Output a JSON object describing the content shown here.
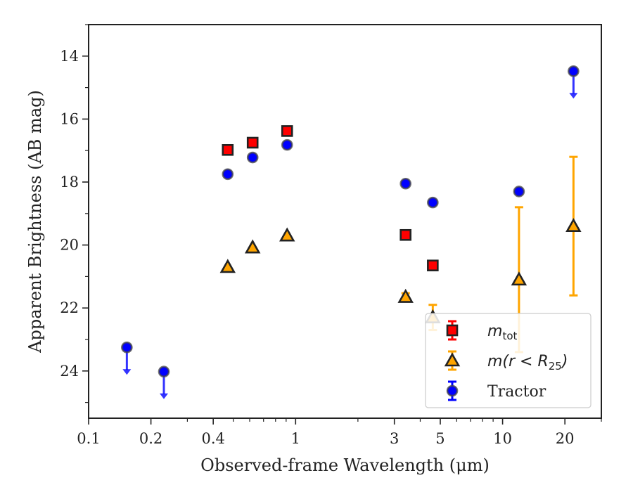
{
  "chart_data": {
    "type": "scatter",
    "title": "",
    "xlabel": "Observed-frame Wavelength (μm)",
    "ylabel": "Apparent Brightness (AB mag)",
    "x_scale": "log",
    "y_inverted": true,
    "xlim": [
      0.1,
      30
    ],
    "ylim": [
      25.5,
      13.0
    ],
    "xticks": [
      0.1,
      0.2,
      0.4,
      1,
      3,
      5,
      10,
      20
    ],
    "xtick_labels": [
      "0.1",
      "0.2",
      "0.4",
      "1",
      "3",
      "5",
      "10",
      "20"
    ],
    "yticks": [
      14,
      16,
      18,
      20,
      22,
      24
    ],
    "ytick_labels": [
      "14",
      "16",
      "18",
      "20",
      "22",
      "24"
    ],
    "grid": false,
    "legend_position": "lower-right",
    "series": [
      {
        "name": "m_tot",
        "legend_label": "m",
        "legend_sub": "tot",
        "marker": "square",
        "color": "#ff0000",
        "edge": "#222222",
        "error_color": "#ff0000",
        "points": [
          {
            "x": 0.47,
            "y": 16.98,
            "err": 0
          },
          {
            "x": 0.62,
            "y": 16.75,
            "err": 0
          },
          {
            "x": 0.91,
            "y": 16.38,
            "err": 0
          },
          {
            "x": 3.4,
            "y": 19.68,
            "err": 0
          },
          {
            "x": 4.6,
            "y": 20.65,
            "err": 0
          }
        ]
      },
      {
        "name": "m(r < R25)",
        "legend_label": "m(r < R",
        "legend_sub": "25",
        "legend_close": ")",
        "marker": "triangle",
        "color": "#ffa500",
        "edge": "#222222",
        "error_color": "#ffa500",
        "points": [
          {
            "x": 0.47,
            "y": 20.7,
            "err": 0
          },
          {
            "x": 0.62,
            "y": 20.08,
            "err": 0
          },
          {
            "x": 0.91,
            "y": 19.7,
            "err": 0
          },
          {
            "x": 3.4,
            "y": 21.65,
            "err": 0.12
          },
          {
            "x": 4.6,
            "y": 22.3,
            "err": 0.4
          },
          {
            "x": 12,
            "y": 21.1,
            "err": 2.3
          },
          {
            "x": 22,
            "y": 19.4,
            "err": 2.2
          }
        ]
      },
      {
        "name": "Tractor",
        "marker": "circle",
        "color": "#0000ff",
        "edge": "#444444",
        "error_color": "#0000ff",
        "points": [
          {
            "x": 0.153,
            "y": 23.25,
            "upper_limit": true
          },
          {
            "x": 0.231,
            "y": 24.02,
            "upper_limit": true
          },
          {
            "x": 0.47,
            "y": 17.75
          },
          {
            "x": 0.62,
            "y": 17.22
          },
          {
            "x": 0.91,
            "y": 16.82
          },
          {
            "x": 3.4,
            "y": 18.05
          },
          {
            "x": 4.6,
            "y": 18.65
          },
          {
            "x": 12,
            "y": 18.3
          },
          {
            "x": 22,
            "y": 14.48,
            "upper_limit": true
          }
        ]
      }
    ]
  }
}
